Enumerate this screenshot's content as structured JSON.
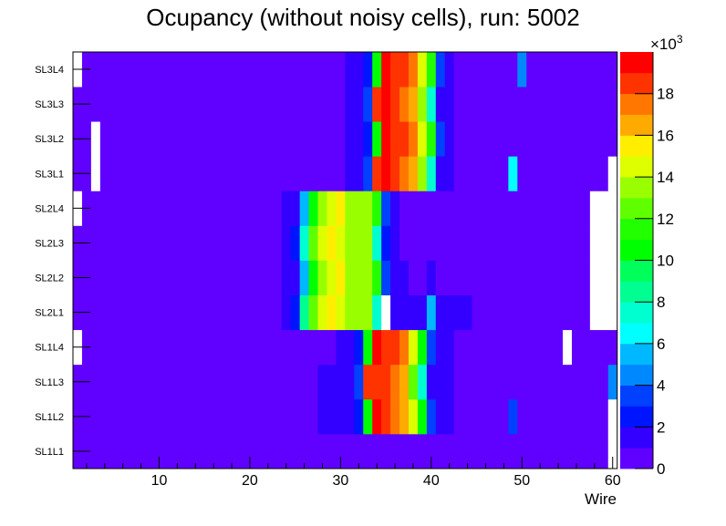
{
  "chart_data": {
    "type": "heatmap",
    "title": "Ocupancy (without noisy cells), run: 5002",
    "xlabel": "Wire",
    "ylabel": "",
    "xlim": [
      0.5,
      60.5
    ],
    "x_bins": 60,
    "x_ticks": [
      "10",
      "20",
      "30",
      "40",
      "50",
      "60"
    ],
    "y_categories": [
      "SL1L1",
      "SL1L2",
      "SL1L3",
      "SL1L4",
      "SL2L1",
      "SL2L2",
      "SL2L3",
      "SL2L4",
      "SL3L1",
      "SL3L2",
      "SL3L3",
      "SL3L4"
    ],
    "value_unit": "x10^3 counts",
    "z_multiplier_label": "×10",
    "z_multiplier_exp": "3",
    "zlim": [
      0,
      20
    ],
    "z_ticks": [
      "0",
      "2",
      "4",
      "6",
      "8",
      "10",
      "12",
      "14",
      "16",
      "18"
    ],
    "empty_color": "#ffffff",
    "palette": [
      "#6000ff",
      "#3300ff",
      "#0015ff",
      "#0040ff",
      "#0088ff",
      "#00b8ff",
      "#00ffff",
      "#00ffd0",
      "#00ff90",
      "#00ff5a",
      "#00ff00",
      "#22ff00",
      "#60ff00",
      "#99ff00",
      "#ddff00",
      "#ffee00",
      "#ffaa00",
      "#ff7700",
      "#ff3300",
      "#ff0000"
    ],
    "rows": [
      {
        "label": "SL1L1",
        "default": 0.5,
        "cells": {
          "60": null
        }
      },
      {
        "label": "SL1L2",
        "default": 0.5,
        "cells": {
          "28": 1.5,
          "29": 1.5,
          "30": 1.5,
          "31": 1.5,
          "32": 2.5,
          "33": 10.5,
          "34": 19.5,
          "35": 18.5,
          "36": 17.5,
          "37": 16.5,
          "38": 14.5,
          "39": 10.5,
          "40": 3.5,
          "41": 1.5,
          "42": 1.5,
          "49": 3.5,
          "60": null
        }
      },
      {
        "label": "SL1L3",
        "default": 0.5,
        "cells": {
          "28": 1.5,
          "29": 1.5,
          "30": 1.5,
          "31": 1.5,
          "32": 3.5,
          "33": 18.5,
          "34": 18.5,
          "35": 18.5,
          "36": 17.5,
          "37": 16.5,
          "38": 12.5,
          "39": 7.5,
          "40": 1.5,
          "41": 1.5,
          "42": 1.5,
          "60": 4.5
        }
      },
      {
        "label": "SL1L4",
        "default": 0.5,
        "cells": {
          "1": null,
          "30": 1.5,
          "31": 1.5,
          "32": 2.5,
          "33": 10.5,
          "34": 19.5,
          "35": 18.5,
          "36": 18.5,
          "37": 17.5,
          "38": 14.5,
          "39": 10.5,
          "40": 3.5,
          "41": 1.5,
          "42": 1.5,
          "55": null
        }
      },
      {
        "label": "SL2L1",
        "default": 0.5,
        "cells": {
          "24": 1.5,
          "25": 2.5,
          "26": 8.5,
          "27": 12.5,
          "28": 14.5,
          "29": 15.5,
          "30": 14.5,
          "31": 13.5,
          "32": 13.5,
          "33": 13.5,
          "34": 7.5,
          "35": null,
          "36": 1.5,
          "37": 1.5,
          "38": 1.5,
          "39": 1.5,
          "40": 5.5,
          "41": 1.5,
          "42": 1.5,
          "43": 1.5,
          "44": 1.5,
          "58": null,
          "59": null,
          "60": null
        }
      },
      {
        "label": "SL2L2",
        "default": 0.5,
        "cells": {
          "24": 1.5,
          "25": 1.5,
          "26": 5.5,
          "27": 10.5,
          "28": 13.5,
          "29": 14.5,
          "30": 15.5,
          "31": 13.5,
          "32": 13.5,
          "33": 13.5,
          "34": 11.5,
          "35": 3.5,
          "36": 1.5,
          "37": 1.5,
          "40": 1.5,
          "58": null,
          "59": null,
          "60": null
        }
      },
      {
        "label": "SL2L3",
        "default": 0.5,
        "cells": {
          "24": 1.5,
          "25": 2.5,
          "26": 7.5,
          "27": 12.5,
          "28": 14.5,
          "29": 15.5,
          "30": 14.5,
          "31": 13.5,
          "32": 13.5,
          "33": 13.5,
          "34": 7.5,
          "35": 2.5,
          "36": 1.5,
          "58": null,
          "59": null,
          "60": null
        }
      },
      {
        "label": "SL2L4",
        "default": 0.5,
        "cells": {
          "1": null,
          "24": 1.5,
          "25": 1.5,
          "26": 5.5,
          "27": 10.5,
          "28": 13.5,
          "29": 14.5,
          "30": 15.5,
          "31": 13.5,
          "32": 13.5,
          "33": 13.5,
          "34": 11.5,
          "35": 3.5,
          "36": 1.5,
          "58": null,
          "59": null,
          "60": null
        }
      },
      {
        "label": "SL3L1",
        "default": 0.5,
        "cells": {
          "3": null,
          "31": 1.5,
          "32": 1.5,
          "33": 3.5,
          "34": 18.5,
          "35": 19.5,
          "36": 18.5,
          "37": 17.5,
          "38": 16.5,
          "39": 13.5,
          "40": 7.5,
          "41": 1.5,
          "42": 1.5,
          "49": 6.5,
          "60": null
        }
      },
      {
        "label": "SL3L2",
        "default": 0.5,
        "cells": {
          "3": null,
          "31": 1.5,
          "32": 1.5,
          "33": 2.5,
          "34": 10.5,
          "35": 19.5,
          "36": 18.5,
          "37": 18.5,
          "38": 17.5,
          "39": 14.5,
          "40": 11.5,
          "41": 3.5,
          "42": 1.5
        }
      },
      {
        "label": "SL3L3",
        "default": 0.5,
        "cells": {
          "31": 1.5,
          "32": 1.5,
          "33": 3.5,
          "34": 18.5,
          "35": 19.5,
          "36": 18.5,
          "37": 17.5,
          "38": 16.5,
          "39": 13.5,
          "40": 7.5,
          "41": 1.5,
          "42": 1.5
        }
      },
      {
        "label": "SL3L4",
        "default": 0.5,
        "cells": {
          "1": null,
          "31": 1.5,
          "32": 1.5,
          "33": 2.5,
          "34": 10.5,
          "35": 19.5,
          "36": 18.5,
          "37": 18.5,
          "38": 17.5,
          "39": 14.5,
          "40": 11.5,
          "41": 3.5,
          "42": 1.5,
          "50": 4.5
        }
      }
    ]
  }
}
